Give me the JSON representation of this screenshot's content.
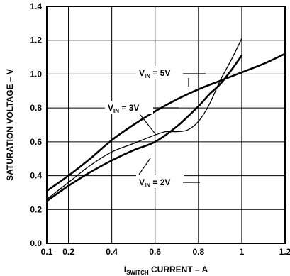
{
  "chart_data": {
    "type": "line",
    "title": "",
    "xlabel": {
      "main": "I",
      "sub": "SWITCH",
      "rest": " CURRENT – A"
    },
    "ylabel": "SATURATION VOLTAGE – V",
    "xlim": [
      0.1,
      1.2
    ],
    "ylim": [
      0.0,
      1.4
    ],
    "x_ticks": [
      "0.1",
      "0.2",
      "0.4",
      "0.6",
      "0.8",
      "1",
      "1.2"
    ],
    "x_tick_values": [
      0.1,
      0.2,
      0.4,
      0.6,
      0.8,
      1.0,
      1.2
    ],
    "y_ticks": [
      "0.0",
      "0.2",
      "0.4",
      "0.6",
      "0.8",
      "1.0",
      "1.2",
      "1.4"
    ],
    "y_tick_values": [
      0.0,
      0.2,
      0.4,
      0.6,
      0.8,
      1.0,
      1.2,
      1.4
    ],
    "grid": true,
    "series": [
      {
        "name": "VIN = 5V",
        "x": [
          0.1,
          0.2,
          0.3,
          0.4,
          0.5,
          0.6,
          0.7,
          0.8,
          0.9,
          1.0,
          1.1,
          1.2
        ],
        "y": [
          0.31,
          0.4,
          0.5,
          0.61,
          0.7,
          0.78,
          0.85,
          0.91,
          0.96,
          1.01,
          1.06,
          1.12
        ],
        "stroke_width": 2.6
      },
      {
        "name": "VIN = 3V",
        "x": [
          0.1,
          0.2,
          0.3,
          0.4,
          0.5,
          0.6,
          0.65,
          0.7,
          0.75,
          0.8,
          0.85,
          0.9,
          0.95,
          1.0
        ],
        "y": [
          0.26,
          0.36,
          0.46,
          0.54,
          0.59,
          0.64,
          0.66,
          0.66,
          0.67,
          0.72,
          0.82,
          0.96,
          1.08,
          1.21
        ],
        "stroke_width": 1.3
      },
      {
        "name": "VIN = 2V",
        "x": [
          0.1,
          0.2,
          0.3,
          0.4,
          0.5,
          0.6,
          0.7,
          0.8,
          0.85,
          0.9,
          0.95,
          1.0
        ],
        "y": [
          0.25,
          0.34,
          0.42,
          0.49,
          0.55,
          0.6,
          0.69,
          0.81,
          0.88,
          0.94,
          1.02,
          1.11
        ],
        "stroke_width": 2.6
      }
    ],
    "annotations": [
      {
        "main": "V",
        "sub": "IN",
        "rest": " = 5V",
        "text": "VIN = 5V"
      },
      {
        "main": "V",
        "sub": "IN",
        "rest": " = 3V",
        "text": "VIN = 3V"
      },
      {
        "main": "V",
        "sub": "IN",
        "rest": " = 2V",
        "text": "VIN = 2V"
      }
    ]
  }
}
